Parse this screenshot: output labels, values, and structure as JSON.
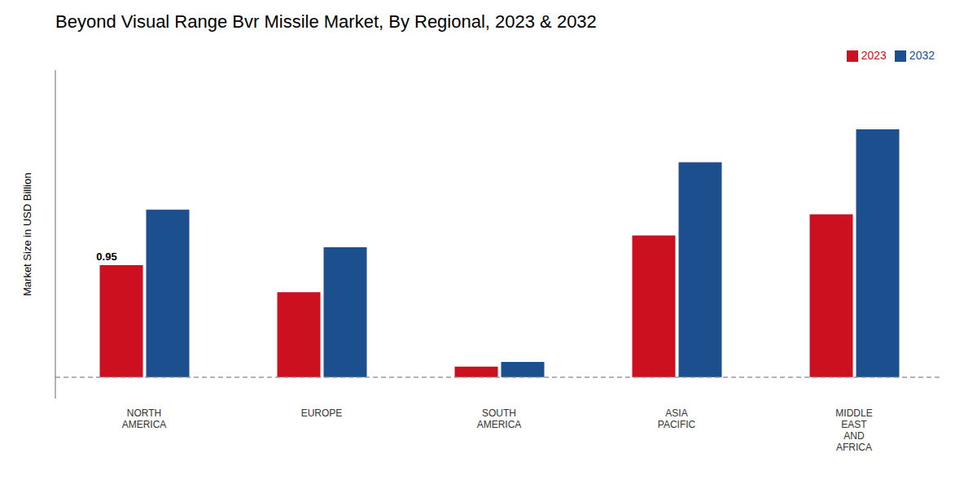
{
  "chart_data": {
    "type": "bar",
    "title": "Beyond Visual Range Bvr Missile Market, By Regional, 2023 & 2032",
    "ylabel": "Market Size in USD Billion",
    "categories": [
      "NORTH\nAMERICA",
      "EUROPE",
      "SOUTH\nAMERICA",
      "ASIA\nPACIFIC",
      "MIDDLE\nEAST\nAND\nAFRICA"
    ],
    "series": [
      {
        "name": "2023",
        "color": "#cc1020",
        "values": [
          0.95,
          0.72,
          0.09,
          1.2,
          1.38
        ]
      },
      {
        "name": "2032",
        "color": "#1b4f8e",
        "values": [
          1.42,
          1.1,
          0.13,
          1.82,
          2.1
        ]
      }
    ],
    "ylim": [
      -0.18,
      2.6
    ],
    "tick_labels": "x",
    "grid": false,
    "legend": "upper right",
    "annotations": [
      {
        "text": "0.95",
        "x": "NORTH\nAMERICA",
        "y": 0.95,
        "series": "2023"
      }
    ],
    "hlines": [
      {
        "y": 0,
        "color": "#888888",
        "line_style": "dashed"
      }
    ]
  }
}
